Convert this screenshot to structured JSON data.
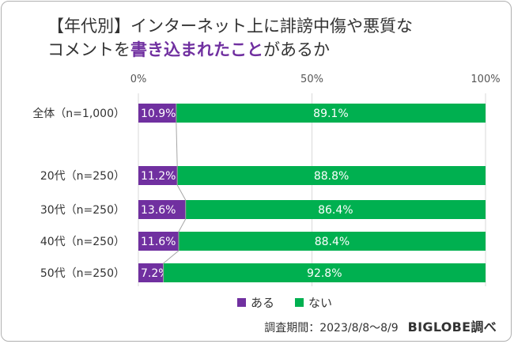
{
  "chart_data": {
    "type": "bar",
    "orientation": "horizontal",
    "stacked": true,
    "title_part1": "【年代別】インターネット上に誹謗中傷や悪質な",
    "title_part2": "コメントを",
    "title_highlight": "書き込まれたこと",
    "title_part3": "があるか",
    "x_ticks": [
      "0%",
      "50%",
      "100%"
    ],
    "xlim": [
      0,
      100
    ],
    "categories": [
      "全体（n=1,000）",
      "20代（n=250）",
      "30代（n=250）",
      "40代（n=250）",
      "50代（n=250）"
    ],
    "series": [
      {
        "name": "ある",
        "color": "#7030a0",
        "values": [
          10.9,
          11.2,
          13.6,
          11.6,
          7.2
        ],
        "labels": [
          "10.9%",
          "11.2%",
          "13.6%",
          "11.6%",
          "7.2%"
        ]
      },
      {
        "name": "ない",
        "color": "#00b050",
        "values": [
          89.1,
          88.8,
          86.4,
          88.4,
          92.8
        ],
        "labels": [
          "89.1%",
          "88.8%",
          "86.4%",
          "88.4%",
          "92.8%"
        ]
      }
    ],
    "grid": true,
    "legend": "bottom"
  },
  "footer": {
    "survey": "調査期間：2023/8/8～8/9",
    "brand": "BIGLOBE調べ"
  }
}
